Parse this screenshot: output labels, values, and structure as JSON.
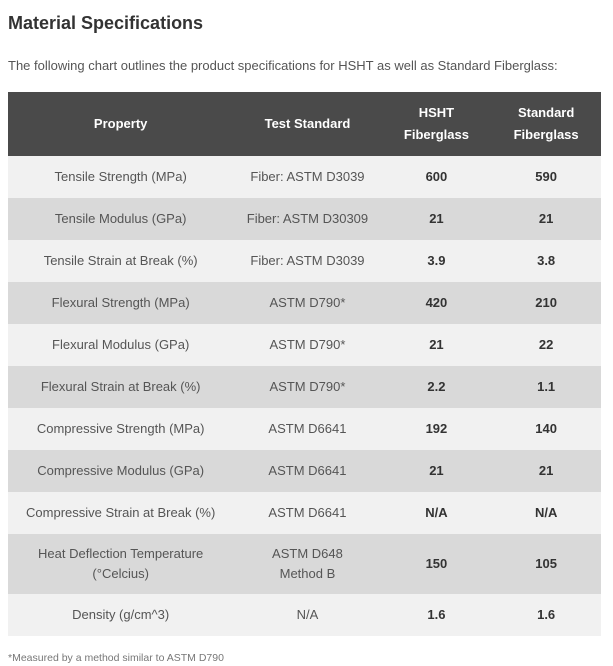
{
  "page": {
    "title": "Material Specifications",
    "subtitle": "The following chart outlines the product specifications for HSHT as well as Standard Fiberglass:",
    "footnote": "*Measured by a method similar to ASTM D790"
  },
  "table": {
    "columns": [
      "Property",
      "Test Standard",
      "HSHT\nFiberglass",
      "Standard\nFiberglass"
    ],
    "rows": [
      {
        "property": "Tensile Strength (MPa)",
        "test_standard": "Fiber: ASTM D3039",
        "hsht": "600",
        "standard": "590"
      },
      {
        "property": "Tensile Modulus (GPa)",
        "test_standard": "Fiber: ASTM D30309",
        "hsht": "21",
        "standard": "21"
      },
      {
        "property": "Tensile Strain at Break (%)",
        "test_standard": "Fiber: ASTM D3039",
        "hsht": "3.9",
        "standard": "3.8"
      },
      {
        "property": "Flexural Strength (MPa)",
        "test_standard": "ASTM D790*",
        "hsht": "420",
        "standard": "210"
      },
      {
        "property": "Flexural Modulus (GPa)",
        "test_standard": "ASTM D790*",
        "hsht": "21",
        "standard": "22"
      },
      {
        "property": "Flexural Strain at Break (%)",
        "test_standard": "ASTM D790*",
        "hsht": "2.2",
        "standard": "1.1"
      },
      {
        "property": "Compressive Strength (MPa)",
        "test_standard": "ASTM D6641",
        "hsht": "192",
        "standard": "140"
      },
      {
        "property": "Compressive Modulus (GPa)",
        "test_standard": "ASTM D6641",
        "hsht": "21",
        "standard": "21"
      },
      {
        "property": "Compressive Strain at Break (%)",
        "test_standard": "ASTM D6641",
        "hsht": "N/A",
        "standard": "N/A"
      },
      {
        "property": "Heat Deflection Temperature\n(°Celcius)",
        "test_standard": "ASTM D648\nMethod B",
        "hsht": "150",
        "standard": "105"
      },
      {
        "property": "Density (g/cm^3)",
        "test_standard": "N/A",
        "hsht": "1.6",
        "standard": "1.6"
      }
    ]
  },
  "colors": {
    "header_background": "#4a4a4a",
    "header_text": "#ffffff",
    "row_light": "#f1f1f1",
    "row_dark": "#d9d9d9",
    "body_text": "#555555",
    "value_text": "#333333"
  }
}
